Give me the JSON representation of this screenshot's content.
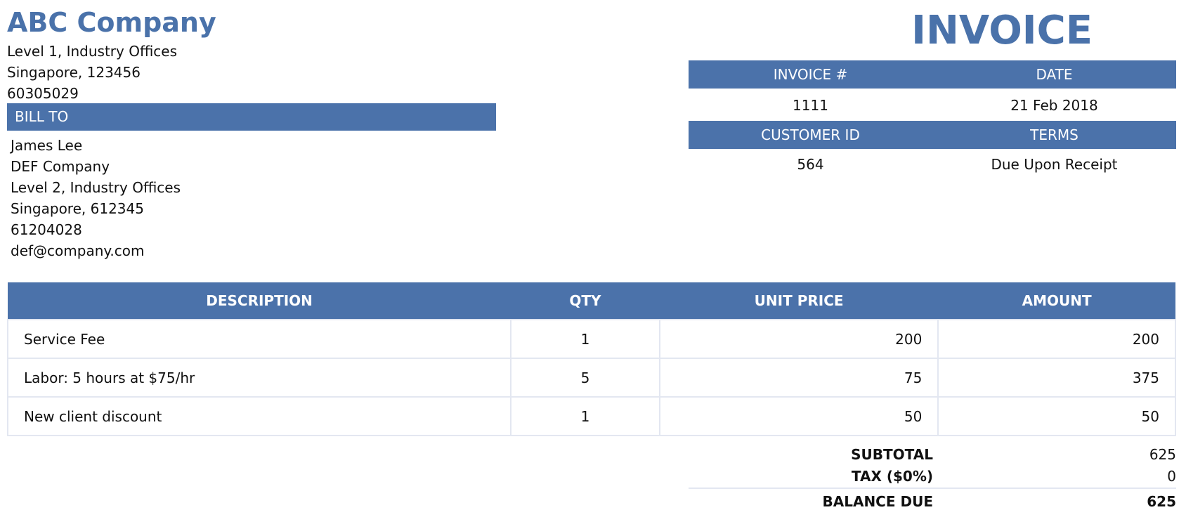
{
  "company": {
    "name": "ABC Company",
    "address_line1": "Level 1, Industry Offices",
    "address_line2": "Singapore, 123456",
    "phone": "60305029"
  },
  "document_title": "INVOICE",
  "bill_to": {
    "header": "BILL TO",
    "name": "James Lee",
    "company": "DEF Company",
    "address_line1": "Level 2, Industry Offices",
    "address_line2": "Singapore, 612345",
    "phone": "61204028",
    "email": "def@company.com"
  },
  "meta": {
    "invoice_no_label": "INVOICE #",
    "date_label": "DATE",
    "invoice_no": "1111",
    "date": "21 Feb 2018",
    "customer_id_label": "CUSTOMER ID",
    "terms_label": "TERMS",
    "customer_id": "564",
    "terms": "Due Upon Receipt"
  },
  "items": {
    "headers": [
      "DESCRIPTION",
      "QTY",
      "UNIT PRICE",
      "AMOUNT"
    ],
    "rows": [
      {
        "description": "Service Fee",
        "qty": "1",
        "unit_price": "200",
        "amount": "200"
      },
      {
        "description": "Labor: 5 hours at $75/hr",
        "qty": "5",
        "unit_price": "75",
        "amount": "375"
      },
      {
        "description": "New client discount",
        "qty": "1",
        "unit_price": "50",
        "amount": "50"
      }
    ]
  },
  "totals": {
    "subtotal_label": "SUBTOTAL",
    "subtotal": "625",
    "tax_label": "TAX ($0%)",
    "tax": "0",
    "balance_label": "BALANCE DUE",
    "balance": "625"
  },
  "colors": {
    "accent": "#4b72aa",
    "grid": "#e3e7f1"
  }
}
